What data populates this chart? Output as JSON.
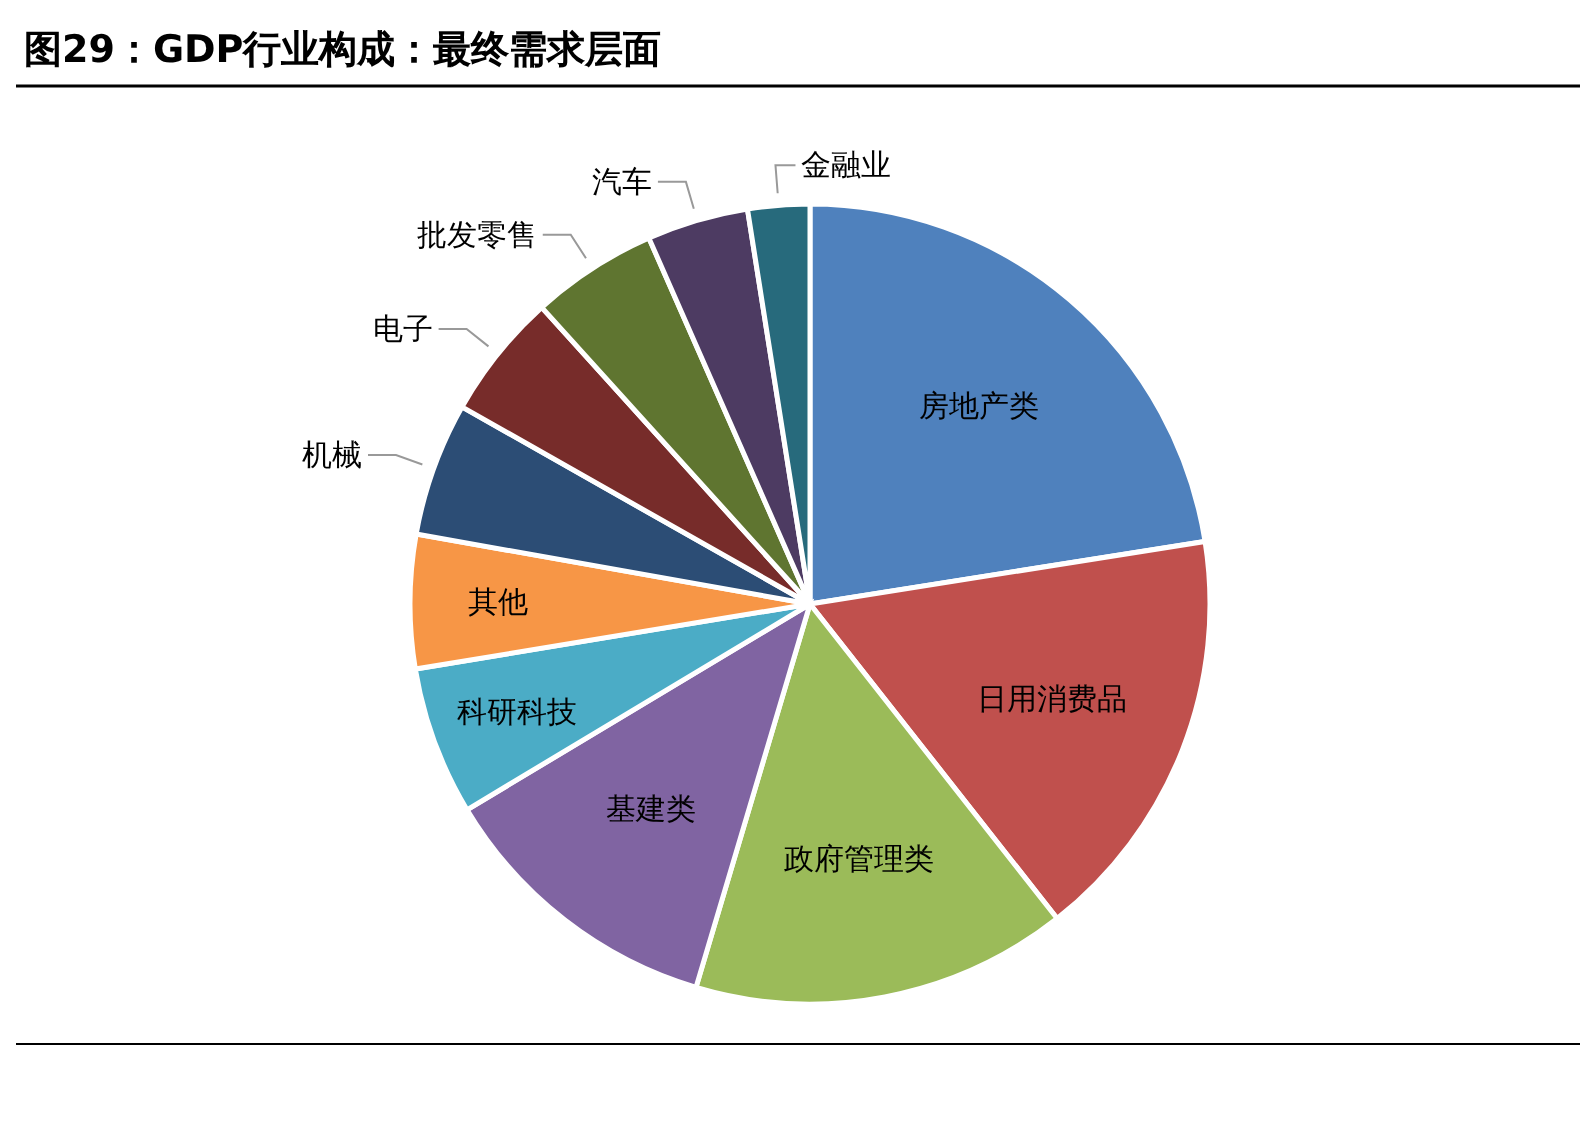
{
  "chart_data": {
    "type": "pie",
    "title": "图29：GDP行业构成：最终需求层面",
    "categories": [
      "房地产类",
      "日用消费品",
      "政府管理类",
      "基建类",
      "科研科技",
      "其他",
      "机械",
      "电子",
      "批发零售",
      "汽车",
      "金融业"
    ],
    "values": [
      22.5,
      16.9,
      15.2,
      11.8,
      6.0,
      5.4,
      5.4,
      5.1,
      5.1,
      4.1,
      2.5
    ],
    "colors": [
      "#4f81bd",
      "#c0504d",
      "#9bbb59",
      "#8064a2",
      "#4bacc6",
      "#f79646",
      "#2c4d75",
      "#772c2a",
      "#5f7530",
      "#4d3b62",
      "#276a7c"
    ]
  }
}
